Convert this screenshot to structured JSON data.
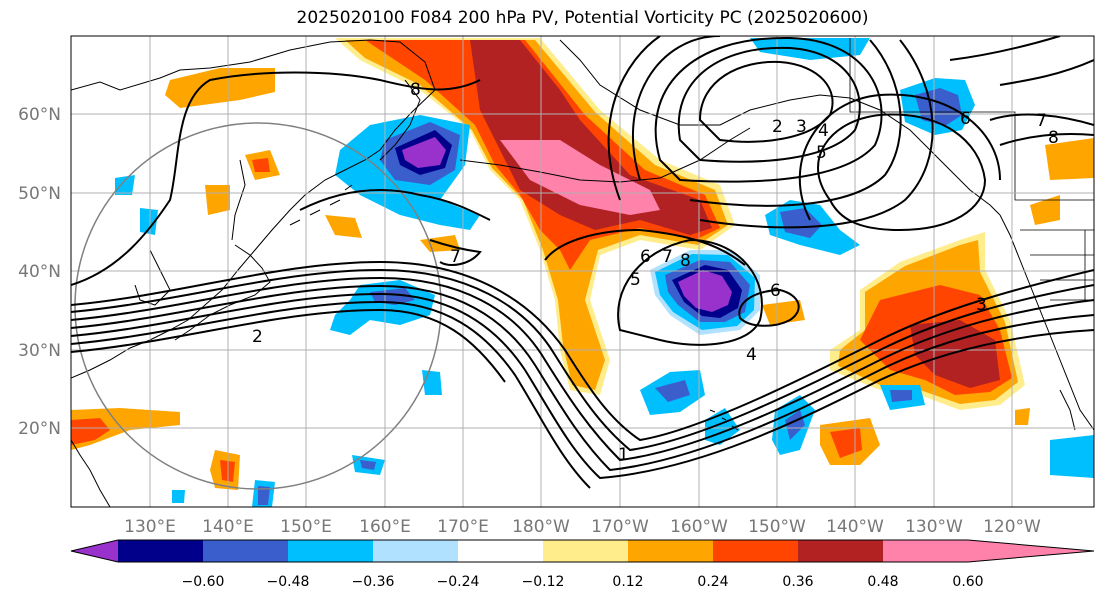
{
  "title": "2025020100 F084 200 hPa PV, Potential Vorticity PC (2025020600)",
  "lon_labels": [
    "130°E",
    "140°E",
    "150°E",
    "160°E",
    "170°E",
    "180°W",
    "170°W",
    "160°W",
    "150°W",
    "140°W",
    "130°W",
    "120°W"
  ],
  "lat_labels": [
    "60°N",
    "50°N",
    "40°N",
    "30°N",
    "20°N"
  ],
  "colorbar": {
    "ticks": [
      "−0.60",
      "−0.48",
      "−0.36",
      "−0.24",
      "−0.12",
      "0.12",
      "0.24",
      "0.36",
      "0.48",
      "0.60"
    ],
    "colors": [
      "#9932cc",
      "#00008b",
      "#3a5fcd",
      "#00bfff",
      "#b0e2ff",
      "#ffffff",
      "#ffec8b",
      "#ffa500",
      "#ff4500",
      "#b22222",
      "#ff82ab"
    ]
  },
  "contour_labels": [
    "2",
    "1",
    "4",
    "3",
    "6",
    "7",
    "8",
    "5",
    "6",
    "7",
    "8",
    "2",
    "3",
    "4",
    "5",
    "6",
    "7",
    "8",
    "7",
    "6"
  ],
  "colors": {
    "purple": "#9932cc",
    "navy": "#00008b",
    "blue": "#3a5fcd",
    "sky": "#00bfff",
    "lightblue": "#b0e2ff",
    "yellow": "#ffec8b",
    "orange": "#ffa500",
    "redorange": "#ff4500",
    "red": "#b22222",
    "pink": "#ff82ab"
  }
}
